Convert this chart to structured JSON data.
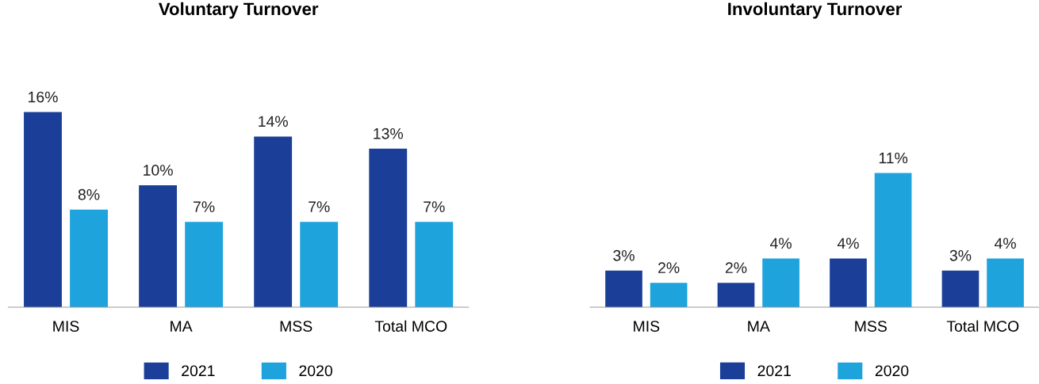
{
  "chart_data": [
    {
      "type": "bar",
      "title": "Voluntary Turnover",
      "categories": [
        "MIS",
        "MA",
        "MSS",
        "Total MCO"
      ],
      "data_labels": true,
      "legend": "bottom",
      "grid": false,
      "series": [
        {
          "name": "2021",
          "color": "#1b3f98",
          "values": [
            16,
            10,
            14,
            13
          ],
          "value_labels": [
            "16%",
            "10%",
            "14%",
            "13%"
          ]
        },
        {
          "name": "2020",
          "color": "#1fa3dc",
          "values": [
            8,
            7,
            7,
            7
          ],
          "value_labels": [
            "8%",
            "7%",
            "7%",
            "7%"
          ]
        }
      ]
    },
    {
      "type": "bar",
      "title": "Involuntary Turnover",
      "categories": [
        "MIS",
        "MA",
        "MSS",
        "Total MCO"
      ],
      "data_labels": true,
      "legend": "bottom",
      "grid": false,
      "series": [
        {
          "name": "2021",
          "color": "#1b3f98",
          "values": [
            3,
            2,
            4,
            3
          ],
          "value_labels": [
            "3%",
            "2%",
            "4%",
            "3%"
          ]
        },
        {
          "name": "2020",
          "color": "#1fa3dc",
          "values": [
            2,
            4,
            11,
            4
          ],
          "value_labels": [
            "2%",
            "4%",
            "11%",
            "4%"
          ]
        }
      ]
    }
  ]
}
